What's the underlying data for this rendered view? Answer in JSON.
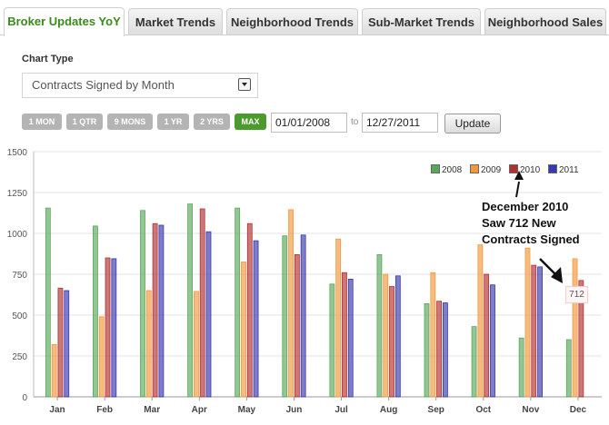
{
  "tabs": [
    {
      "label": "Broker Updates YoY",
      "active": true
    },
    {
      "label": "Market Trends",
      "active": false
    },
    {
      "label": "Neighborhood Trends",
      "active": false
    },
    {
      "label": "Sub-Market Trends",
      "active": false
    },
    {
      "label": "Neighborhood Sales",
      "active": false
    }
  ],
  "controls": {
    "chart_type_label": "Chart Type",
    "chart_type_value": "Contracts Signed by Month",
    "ranges": [
      {
        "label": "1 MON",
        "active": false
      },
      {
        "label": "1 QTR",
        "active": false
      },
      {
        "label": "9 MONS",
        "active": false
      },
      {
        "label": "1 YR",
        "active": false
      },
      {
        "label": "2 YRS",
        "active": false
      },
      {
        "label": "MAX",
        "active": true
      }
    ],
    "start_date": "01/01/2008",
    "to_label": "to",
    "end_date": "12/27/2011",
    "update_label": "Update"
  },
  "chart_data": {
    "type": "bar",
    "categories": [
      "Jan",
      "Feb",
      "Mar",
      "Apr",
      "May",
      "Jun",
      "Jul",
      "Aug",
      "Sep",
      "Oct",
      "Nov",
      "Dec"
    ],
    "series": [
      {
        "name": "2008",
        "color": "#5aa65a",
        "values": [
          1155,
          1045,
          1140,
          1180,
          1155,
          985,
          690,
          870,
          570,
          430,
          360,
          350
        ]
      },
      {
        "name": "2009",
        "color": "#f5973a",
        "values": [
          320,
          490,
          650,
          645,
          825,
          1145,
          965,
          750,
          760,
          930,
          910,
          845
        ]
      },
      {
        "name": "2010",
        "color": "#b03030",
        "values": [
          665,
          850,
          1060,
          1150,
          1060,
          870,
          760,
          675,
          585,
          750,
          805,
          712
        ]
      },
      {
        "name": "2011",
        "color": "#3838b0",
        "values": [
          650,
          845,
          1050,
          1010,
          955,
          990,
          720,
          740,
          575,
          685,
          795,
          0
        ]
      }
    ],
    "ylim": [
      0,
      1500
    ],
    "yticks": [
      0,
      250,
      500,
      750,
      1000,
      1250,
      1500
    ],
    "grid": true,
    "legend_position": "top-right"
  },
  "annotation": {
    "lines": [
      "December 2010",
      "Saw 712 New",
      "Contracts Signed"
    ]
  },
  "tooltip": {
    "value": "712"
  }
}
